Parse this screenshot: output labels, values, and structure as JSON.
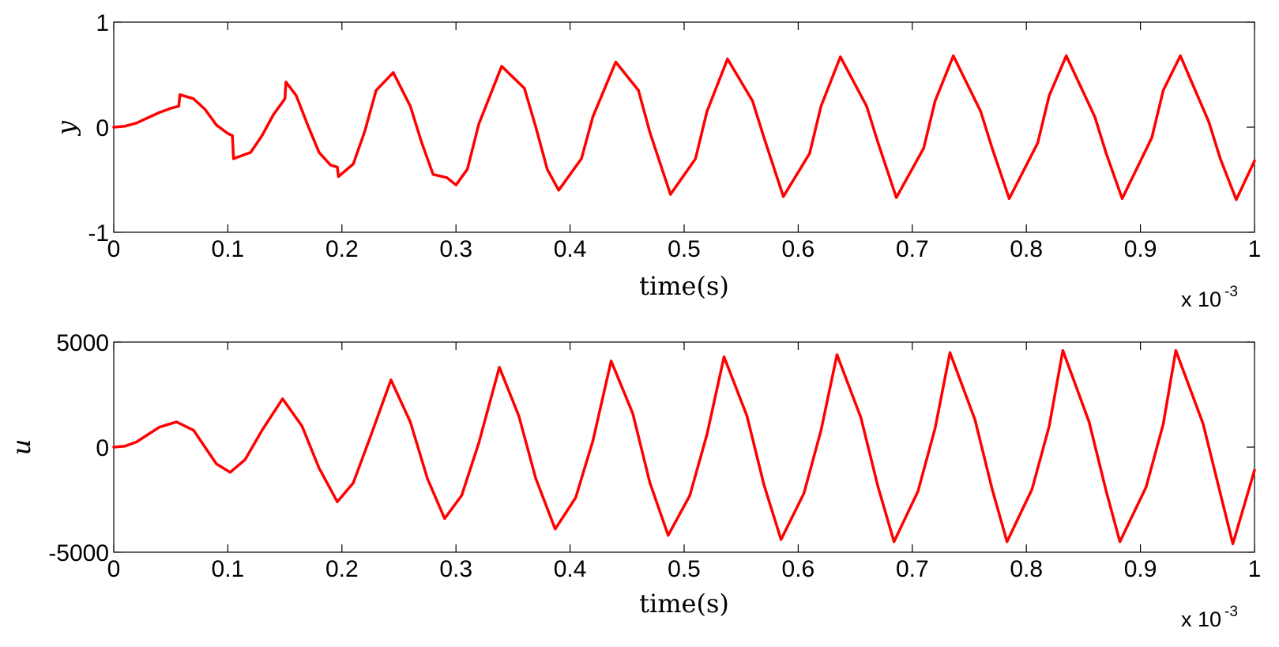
{
  "chart_data": [
    {
      "type": "line",
      "title": "",
      "xlabel": "time(s)",
      "ylabel": "y",
      "x_multiplier_label": "x 10",
      "x_multiplier_exponent": "-3",
      "xlim": [
        0,
        1
      ],
      "ylim": [
        -1,
        1
      ],
      "xticks": [
        "0",
        "0.1",
        "0.2",
        "0.3",
        "0.4",
        "0.5",
        "0.6",
        "0.7",
        "0.8",
        "0.9",
        "1"
      ],
      "yticks": [
        "-1",
        "0",
        "1"
      ],
      "grid": false,
      "line_color": "#ff0000",
      "series": [
        {
          "x": [
            0,
            0.01,
            0.02,
            0.03,
            0.04,
            0.05,
            0.057,
            0.058,
            0.07,
            0.08,
            0.09,
            0.1,
            0.104,
            0.105,
            0.12,
            0.13,
            0.14,
            0.15,
            0.151,
            0.16,
            0.17,
            0.18,
            0.19,
            0.196,
            0.197,
            0.21,
            0.22,
            0.23,
            0.245,
            0.26,
            0.27,
            0.28,
            0.292,
            0.3,
            0.31,
            0.32,
            0.34,
            0.36,
            0.37,
            0.38,
            0.39,
            0.41,
            0.42,
            0.44,
            0.46,
            0.47,
            0.488,
            0.51,
            0.52,
            0.538,
            0.56,
            0.57,
            0.587,
            0.61,
            0.62,
            0.637,
            0.66,
            0.67,
            0.686,
            0.71,
            0.72,
            0.736,
            0.76,
            0.77,
            0.785,
            0.81,
            0.82,
            0.835,
            0.86,
            0.87,
            0.884,
            0.91,
            0.92,
            0.935,
            0.96,
            0.97,
            0.984,
            1.0
          ],
          "y": [
            0.0,
            0.01,
            0.04,
            0.09,
            0.14,
            0.18,
            0.2,
            0.31,
            0.27,
            0.17,
            0.02,
            -0.06,
            -0.08,
            -0.3,
            -0.24,
            -0.08,
            0.12,
            0.27,
            0.43,
            0.3,
            0.02,
            -0.24,
            -0.36,
            -0.38,
            -0.47,
            -0.35,
            -0.04,
            0.35,
            0.52,
            0.2,
            -0.15,
            -0.45,
            -0.48,
            -0.55,
            -0.4,
            0.03,
            0.58,
            0.37,
            0.0,
            -0.4,
            -0.6,
            -0.3,
            0.1,
            0.62,
            0.35,
            -0.05,
            -0.64,
            -0.3,
            0.15,
            0.65,
            0.25,
            -0.1,
            -0.66,
            -0.25,
            0.2,
            0.67,
            0.2,
            -0.15,
            -0.67,
            -0.2,
            0.25,
            0.68,
            0.15,
            -0.2,
            -0.68,
            -0.15,
            0.3,
            0.68,
            0.1,
            -0.25,
            -0.68,
            -0.1,
            0.35,
            0.68,
            0.05,
            -0.3,
            -0.69,
            -0.32
          ]
        }
      ]
    },
    {
      "type": "line",
      "title": "",
      "xlabel": "time(s)",
      "ylabel": "u",
      "x_multiplier_label": "x 10",
      "x_multiplier_exponent": "-3",
      "xlim": [
        0,
        1
      ],
      "ylim": [
        -5000,
        5000
      ],
      "xticks": [
        "0",
        "0.1",
        "0.2",
        "0.3",
        "0.4",
        "0.5",
        "0.6",
        "0.7",
        "0.8",
        "0.9",
        "1"
      ],
      "yticks": [
        "-5000",
        "0",
        "5000"
      ],
      "grid": false,
      "line_color": "#ff0000",
      "series": [
        {
          "x": [
            0,
            0.01,
            0.02,
            0.03,
            0.04,
            0.055,
            0.07,
            0.08,
            0.09,
            0.102,
            0.115,
            0.13,
            0.148,
            0.165,
            0.18,
            0.196,
            0.21,
            0.225,
            0.243,
            0.26,
            0.275,
            0.29,
            0.305,
            0.32,
            0.338,
            0.355,
            0.37,
            0.387,
            0.405,
            0.42,
            0.436,
            0.455,
            0.47,
            0.486,
            0.505,
            0.52,
            0.535,
            0.555,
            0.57,
            0.585,
            0.605,
            0.62,
            0.634,
            0.655,
            0.67,
            0.684,
            0.705,
            0.72,
            0.733,
            0.755,
            0.77,
            0.783,
            0.805,
            0.82,
            0.832,
            0.855,
            0.87,
            0.882,
            0.905,
            0.92,
            0.931,
            0.955,
            0.97,
            0.981,
            1.0
          ],
          "y": [
            0,
            50,
            250,
            600,
            950,
            1200,
            800,
            0,
            -800,
            -1200,
            -600,
            800,
            2300,
            1000,
            -1000,
            -2600,
            -1700,
            500,
            3200,
            1200,
            -1500,
            -3400,
            -2300,
            200,
            3800,
            1500,
            -1500,
            -3900,
            -2400,
            300,
            4100,
            1600,
            -1700,
            -4200,
            -2300,
            600,
            4300,
            1500,
            -1800,
            -4400,
            -2200,
            800,
            4400,
            1400,
            -1900,
            -4500,
            -2100,
            900,
            4500,
            1300,
            -2000,
            -4500,
            -2000,
            1000,
            4600,
            1200,
            -2100,
            -4500,
            -1900,
            1100,
            4600,
            1100,
            -2200,
            -4600,
            -1100
          ]
        }
      ]
    }
  ]
}
